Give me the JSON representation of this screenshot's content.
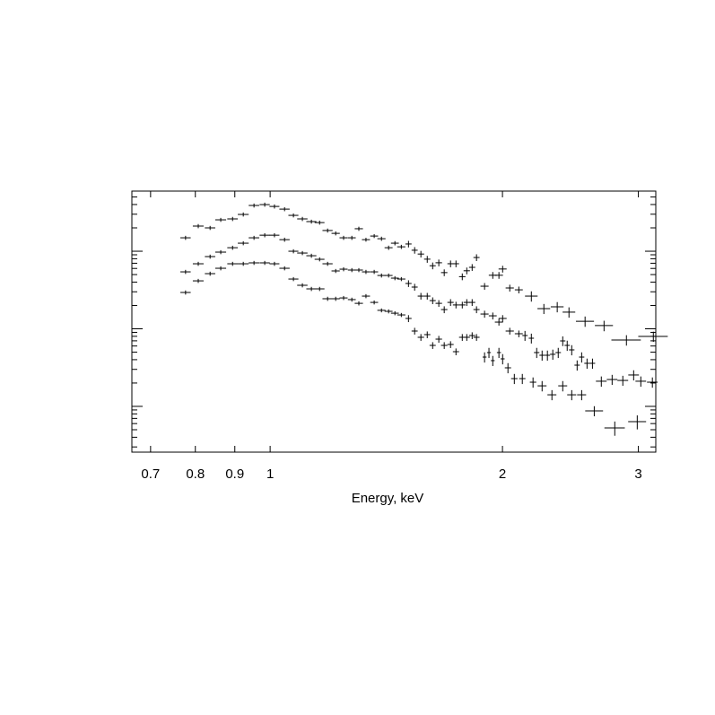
{
  "chart_data": {
    "type": "error_cross",
    "xlabel": "Energy, keV",
    "xscale": "log",
    "yscale": "log",
    "xlim": [
      0.662,
      3.16
    ],
    "ylim": [
      0.00257,
      5.96
    ],
    "xticks": [
      0.7,
      0.8,
      0.9,
      1,
      2,
      3
    ],
    "yticks": [
      0.01,
      0.1,
      1
    ],
    "yminor_ticks": [
      0.003,
      0.004,
      0.005,
      0.006,
      0.007,
      0.008,
      0.009,
      0.02,
      0.03,
      0.04,
      0.05,
      0.06,
      0.07,
      0.08,
      0.09,
      0.2,
      0.3,
      0.4,
      0.5,
      0.6,
      0.7,
      0.8,
      0.9,
      2,
      3,
      4,
      5
    ],
    "series": [
      {
        "color": "#000000",
        "x": [
          0.777,
          0.807,
          0.836,
          0.863,
          0.894,
          0.923,
          0.953,
          0.984,
          1.013,
          1.044,
          1.072,
          1.101,
          1.131,
          1.159,
          1.187,
          1.216,
          1.245,
          1.276,
          1.303,
          1.331,
          1.364,
          1.394,
          1.424,
          1.451,
          1.479,
          1.511,
          1.539,
          1.568,
          1.598,
          1.624,
          1.654,
          1.681,
          1.713,
          1.741,
          1.774,
          1.798,
          1.827,
          1.851,
          1.896,
          1.943,
          1.979,
          2.001,
          2.044,
          2.1,
          2.18,
          2.263,
          2.355,
          2.439,
          2.559,
          2.708,
          2.895,
          3.137
        ],
        "x_err": [
          0.012,
          0.013,
          0.013,
          0.014,
          0.014,
          0.015,
          0.015,
          0.015,
          0.015,
          0.016,
          0.016,
          0.017,
          0.017,
          0.017,
          0.018,
          0.015,
          0.015,
          0.015,
          0.016,
          0.016,
          0.016,
          0.017,
          0.017,
          0.017,
          0.018,
          0.014,
          0.014,
          0.015,
          0.015,
          0.015,
          0.016,
          0.016,
          0.016,
          0.016,
          0.017,
          0.017,
          0.017,
          0.017,
          0.023,
          0.023,
          0.024,
          0.024,
          0.025,
          0.025,
          0.041,
          0.043,
          0.045,
          0.046,
          0.069,
          0.073,
          0.127,
          0.138
        ],
        "values": [
          1.49,
          2.11,
          2.0,
          2.54,
          2.61,
          2.98,
          3.89,
          3.99,
          3.78,
          3.49,
          2.9,
          2.61,
          2.41,
          2.34,
          1.85,
          1.7,
          1.49,
          1.49,
          1.95,
          1.41,
          1.57,
          1.45,
          1.11,
          1.27,
          1.14,
          1.24,
          1.03,
          0.92,
          0.79,
          0.65,
          0.71,
          0.53,
          0.69,
          0.69,
          0.47,
          0.56,
          0.62,
          0.83,
          0.354,
          0.49,
          0.49,
          0.59,
          0.336,
          0.318,
          0.264,
          0.182,
          0.192,
          0.164,
          0.125,
          0.11,
          0.0717,
          0.0798
        ],
        "y_err": [
          0.09,
          0.13,
          0.12,
          0.15,
          0.16,
          0.18,
          0.23,
          0.24,
          0.23,
          0.21,
          0.17,
          0.16,
          0.14,
          0.14,
          0.11,
          0.1,
          0.09,
          0.09,
          0.12,
          0.08,
          0.09,
          0.09,
          0.07,
          0.08,
          0.07,
          0.12,
          0.1,
          0.09,
          0.08,
          0.065,
          0.071,
          0.053,
          0.069,
          0.069,
          0.047,
          0.056,
          0.062,
          0.083,
          0.035,
          0.049,
          0.049,
          0.059,
          0.034,
          0.032,
          0.04,
          0.027,
          0.029,
          0.025,
          0.019,
          0.017,
          0.011,
          0.012
        ]
      },
      {
        "color": "#000000",
        "x": [
          0.777,
          0.807,
          0.836,
          0.863,
          0.894,
          0.923,
          0.953,
          0.984,
          1.013,
          1.044,
          1.072,
          1.101,
          1.131,
          1.159,
          1.187,
          1.216,
          1.245,
          1.276,
          1.303,
          1.331,
          1.364,
          1.394,
          1.424,
          1.451,
          1.479,
          1.511,
          1.539,
          1.568,
          1.598,
          1.624,
          1.654,
          1.681,
          1.713,
          1.741,
          1.774,
          1.798,
          1.827,
          1.851,
          1.896,
          1.943,
          1.979,
          2.001,
          2.044,
          2.1,
          2.139,
          2.18,
          2.215,
          2.251,
          2.287,
          2.324,
          2.362,
          2.394,
          2.426,
          2.459,
          2.499,
          2.533,
          2.574,
          2.616,
          2.686,
          2.774,
          2.864,
          2.958,
          3.022,
          3.128
        ],
        "x_err": [
          0.012,
          0.013,
          0.013,
          0.014,
          0.014,
          0.015,
          0.015,
          0.015,
          0.015,
          0.016,
          0.016,
          0.017,
          0.017,
          0.017,
          0.018,
          0.015,
          0.015,
          0.015,
          0.016,
          0.016,
          0.016,
          0.017,
          0.017,
          0.017,
          0.018,
          0.014,
          0.014,
          0.015,
          0.015,
          0.015,
          0.016,
          0.016,
          0.016,
          0.016,
          0.017,
          0.017,
          0.017,
          0.017,
          0.023,
          0.023,
          0.024,
          0.024,
          0.025,
          0.025,
          0.017,
          0.017,
          0.018,
          0.018,
          0.018,
          0.019,
          0.019,
          0.019,
          0.019,
          0.02,
          0.02,
          0.02,
          0.021,
          0.021,
          0.043,
          0.044,
          0.046,
          0.047,
          0.048,
          0.05
        ],
        "values": [
          0.542,
          0.689,
          0.853,
          0.974,
          1.11,
          1.27,
          1.49,
          1.61,
          1.61,
          1.41,
          1.0,
          0.948,
          0.875,
          0.787,
          0.689,
          0.557,
          0.587,
          0.572,
          0.572,
          0.542,
          0.542,
          0.487,
          0.487,
          0.45,
          0.438,
          0.384,
          0.345,
          0.264,
          0.264,
          0.231,
          0.213,
          0.177,
          0.219,
          0.203,
          0.203,
          0.219,
          0.219,
          0.177,
          0.155,
          0.147,
          0.122,
          0.136,
          0.0936,
          0.0864,
          0.0819,
          0.0756,
          0.0494,
          0.0456,
          0.0456,
          0.0469,
          0.0494,
          0.0698,
          0.0611,
          0.0535,
          0.034,
          0.0432,
          0.0359,
          0.0359,
          0.0211,
          0.0222,
          0.0216,
          0.0254,
          0.0211,
          0.0205
        ],
        "y_err": [
          0.033,
          0.041,
          0.051,
          0.058,
          0.067,
          0.076,
          0.089,
          0.097,
          0.097,
          0.085,
          0.06,
          0.057,
          0.053,
          0.047,
          0.041,
          0.033,
          0.035,
          0.034,
          0.034,
          0.033,
          0.033,
          0.029,
          0.029,
          0.027,
          0.026,
          0.038,
          0.035,
          0.026,
          0.026,
          0.023,
          0.021,
          0.018,
          0.022,
          0.02,
          0.02,
          0.022,
          0.022,
          0.018,
          0.016,
          0.015,
          0.012,
          0.014,
          0.0094,
          0.0086,
          0.012,
          0.011,
          0.0074,
          0.0068,
          0.0068,
          0.007,
          0.0074,
          0.01,
          0.0092,
          0.008,
          0.0051,
          0.0065,
          0.0054,
          0.0054,
          0.0032,
          0.0033,
          0.0032,
          0.0038,
          0.0032,
          0.0031
        ]
      },
      {
        "color": "#000000",
        "x": [
          0.777,
          0.807,
          0.836,
          0.863,
          0.894,
          0.923,
          0.953,
          0.984,
          1.013,
          1.044,
          1.072,
          1.101,
          1.131,
          1.159,
          1.187,
          1.216,
          1.245,
          1.276,
          1.303,
          1.331,
          1.364,
          1.394,
          1.424,
          1.451,
          1.479,
          1.511,
          1.539,
          1.568,
          1.598,
          1.624,
          1.654,
          1.681,
          1.713,
          1.741,
          1.774,
          1.798,
          1.827,
          1.851,
          1.896,
          1.921,
          1.943,
          1.979,
          2.001,
          2.033,
          2.072,
          2.122,
          2.191,
          2.251,
          2.318,
          2.394,
          2.459,
          2.533,
          2.63,
          2.796,
          2.99
        ],
        "x_err": [
          0.012,
          0.013,
          0.013,
          0.014,
          0.014,
          0.015,
          0.015,
          0.015,
          0.015,
          0.016,
          0.016,
          0.017,
          0.017,
          0.017,
          0.018,
          0.015,
          0.015,
          0.015,
          0.016,
          0.016,
          0.016,
          0.017,
          0.017,
          0.017,
          0.018,
          0.014,
          0.014,
          0.015,
          0.015,
          0.015,
          0.016,
          0.016,
          0.016,
          0.016,
          0.017,
          0.017,
          0.017,
          0.017,
          0.011,
          0.011,
          0.011,
          0.012,
          0.012,
          0.019,
          0.02,
          0.02,
          0.021,
          0.03,
          0.031,
          0.032,
          0.033,
          0.034,
          0.07,
          0.085,
          0.08
        ],
        "values": [
          0.294,
          0.415,
          0.514,
          0.603,
          0.689,
          0.689,
          0.708,
          0.708,
          0.689,
          0.603,
          0.438,
          0.364,
          0.327,
          0.327,
          0.244,
          0.244,
          0.25,
          0.238,
          0.213,
          0.264,
          0.219,
          0.173,
          0.168,
          0.159,
          0.151,
          0.136,
          0.0936,
          0.0777,
          0.0841,
          0.0611,
          0.0736,
          0.0611,
          0.0628,
          0.0507,
          0.0777,
          0.0777,
          0.0819,
          0.0777,
          0.0432,
          0.0494,
          0.0389,
          0.0494,
          0.041,
          0.0314,
          0.0228,
          0.0228,
          0.0205,
          0.0184,
          0.0141,
          0.0184,
          0.0141,
          0.0141,
          0.00875,
          0.00528,
          0.00635
        ],
        "y_err": [
          0.018,
          0.025,
          0.031,
          0.036,
          0.041,
          0.041,
          0.042,
          0.042,
          0.041,
          0.036,
          0.026,
          0.022,
          0.02,
          0.02,
          0.015,
          0.015,
          0.015,
          0.014,
          0.013,
          0.016,
          0.013,
          0.01,
          0.01,
          0.0095,
          0.0091,
          0.014,
          0.0094,
          0.0078,
          0.0084,
          0.0061,
          0.0074,
          0.0061,
          0.0063,
          0.0051,
          0.0078,
          0.0078,
          0.0082,
          0.0078,
          0.0065,
          0.0074,
          0.0058,
          0.0074,
          0.0062,
          0.0047,
          0.0034,
          0.0034,
          0.0031,
          0.0028,
          0.0021,
          0.0028,
          0.0021,
          0.0021,
          0.0013,
          0.0011,
          0.0013
        ]
      }
    ]
  }
}
